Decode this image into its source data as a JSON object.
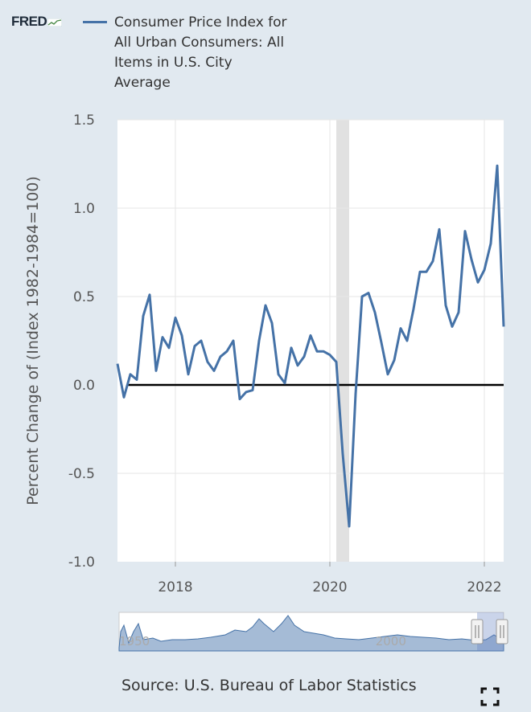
{
  "header": {
    "logo_text": "FRED",
    "legend_label": "Consumer Price Index for All Urban Consumers: All Items in U.S. City Average"
  },
  "footer": {
    "source_text": "Source: U.S. Bureau of Labor Statistics"
  },
  "icons": {
    "logo": "fred-logo-icon",
    "fullscreen": "fullscreen-icon",
    "handles": "grip-handle-icon"
  },
  "chart_data": {
    "type": "line",
    "title": "",
    "xlabel": "",
    "ylabel": "Percent Change of (Index 1982-1984=100)",
    "ylim": [
      -1.0,
      1.5
    ],
    "yticks": [
      -1.0,
      -0.5,
      0.0,
      0.5,
      1.0,
      1.5
    ],
    "ytick_labels": [
      "-1.0",
      "-0.5",
      "0.0",
      "0.5",
      "1.0",
      "1.5"
    ],
    "xlim": [
      "2017-04",
      "2022-04"
    ],
    "xticks": [
      "2018-01",
      "2020-01",
      "2022-01"
    ],
    "xtick_labels": [
      "2018",
      "2020",
      "2022"
    ],
    "grid": true,
    "zero_line": true,
    "recession_shading": [
      {
        "start": "2020-02",
        "end": "2020-04"
      }
    ],
    "series": [
      {
        "name": "Consumer Price Index for All Urban Consumers: All Items in U.S. City Average",
        "color": "#4572a7",
        "x": [
          "2017-04",
          "2017-05",
          "2017-06",
          "2017-07",
          "2017-08",
          "2017-09",
          "2017-10",
          "2017-11",
          "2017-12",
          "2018-01",
          "2018-02",
          "2018-03",
          "2018-04",
          "2018-05",
          "2018-06",
          "2018-07",
          "2018-08",
          "2018-09",
          "2018-10",
          "2018-11",
          "2018-12",
          "2019-01",
          "2019-02",
          "2019-03",
          "2019-04",
          "2019-05",
          "2019-06",
          "2019-07",
          "2019-08",
          "2019-09",
          "2019-10",
          "2019-11",
          "2019-12",
          "2020-01",
          "2020-02",
          "2020-03",
          "2020-04",
          "2020-05",
          "2020-06",
          "2020-07",
          "2020-08",
          "2020-09",
          "2020-10",
          "2020-11",
          "2020-12",
          "2021-01",
          "2021-02",
          "2021-03",
          "2021-04",
          "2021-05",
          "2021-06",
          "2021-07",
          "2021-08",
          "2021-09",
          "2021-10",
          "2021-11",
          "2021-12",
          "2022-01",
          "2022-02",
          "2022-03",
          "2022-04"
        ],
        "values": [
          0.12,
          -0.07,
          0.06,
          0.03,
          0.39,
          0.51,
          0.08,
          0.27,
          0.21,
          0.38,
          0.28,
          0.06,
          0.22,
          0.25,
          0.13,
          0.08,
          0.16,
          0.19,
          0.25,
          -0.08,
          -0.04,
          -0.03,
          0.25,
          0.45,
          0.35,
          0.06,
          0.01,
          0.21,
          0.11,
          0.16,
          0.28,
          0.19,
          0.19,
          0.17,
          0.13,
          -0.39,
          -0.8,
          -0.05,
          0.5,
          0.52,
          0.41,
          0.24,
          0.06,
          0.14,
          0.32,
          0.25,
          0.43,
          0.64,
          0.64,
          0.7,
          0.88,
          0.45,
          0.33,
          0.41,
          0.87,
          0.71,
          0.58,
          0.65,
          0.8,
          1.24,
          0.33
        ]
      }
    ]
  },
  "navigator": {
    "xtick_labels": [
      "1950",
      "2000"
    ],
    "xtick_years": [
      1950,
      2000
    ],
    "xlim": [
      1947,
      2022
    ]
  }
}
